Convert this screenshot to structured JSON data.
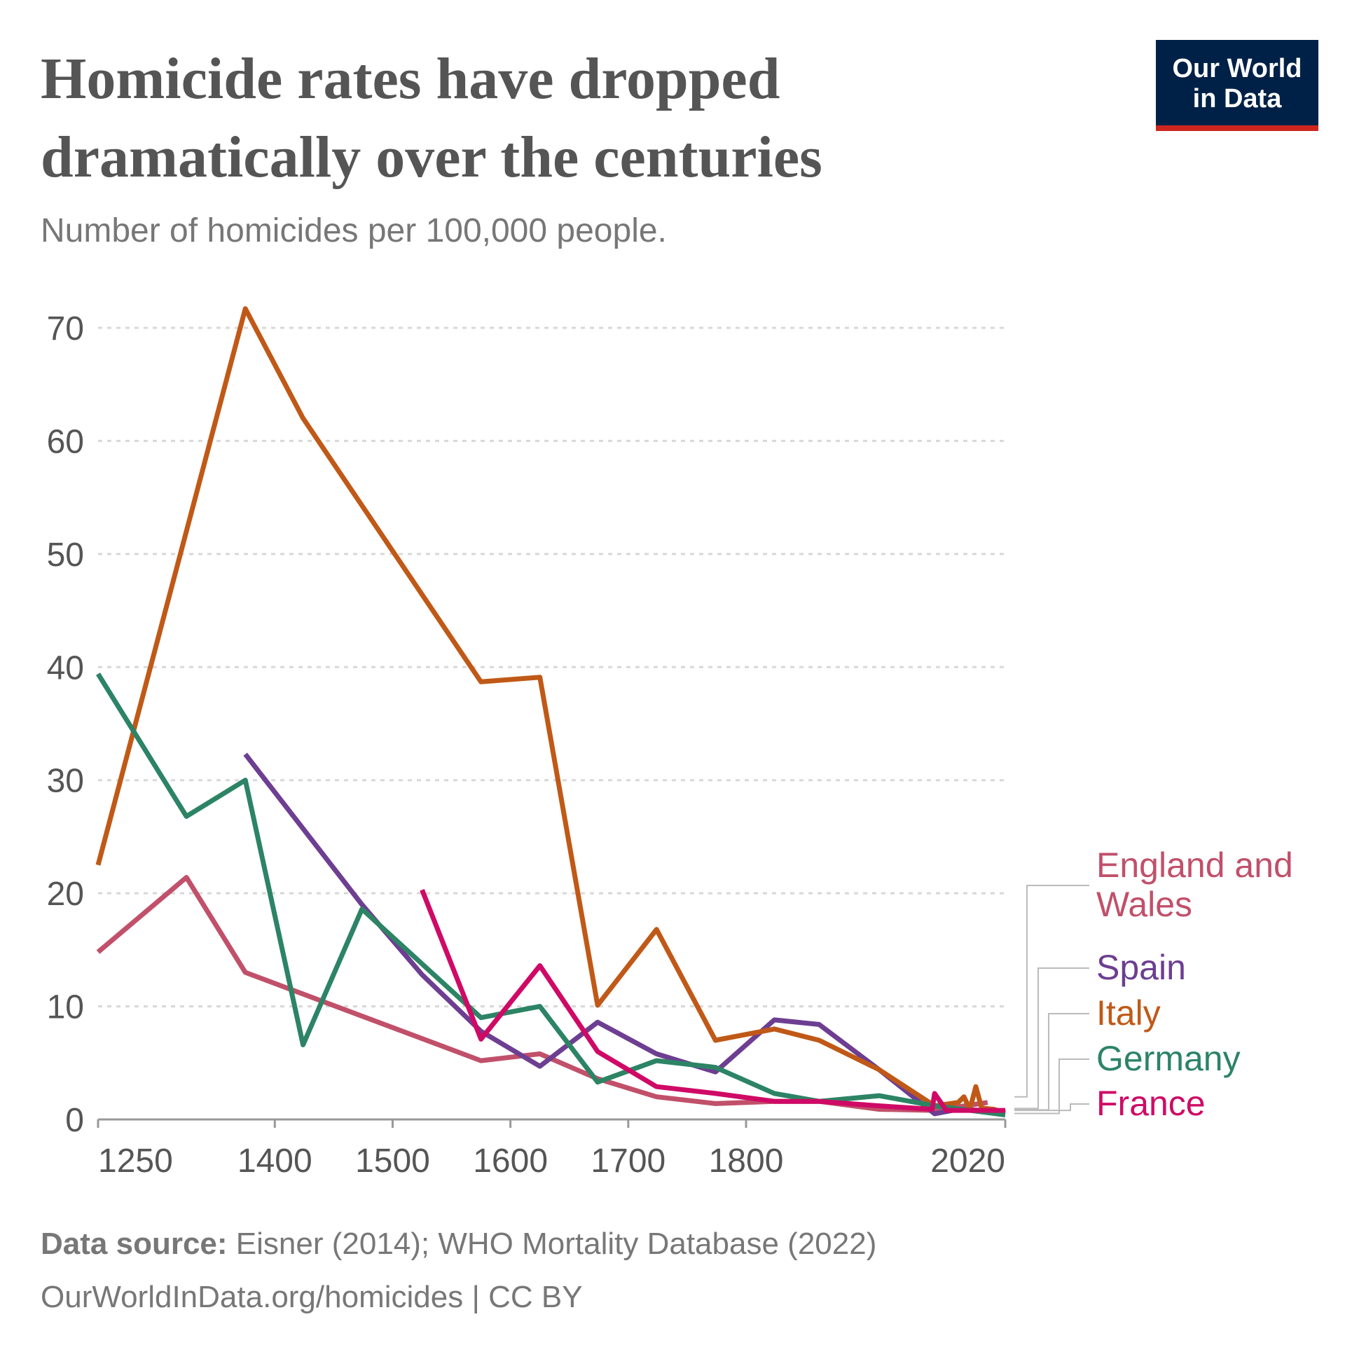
{
  "chart_data": {
    "type": "line",
    "title": "Homicide rates have dropped dramatically over the centuries",
    "subtitle": "Number of homicides per 100,000 people.",
    "source_label": "Data source:",
    "source": "Eisner (2014); WHO Mortality Database (2022)",
    "url": "OurWorldInData.org/homicides | CC BY",
    "logo": [
      "Our World",
      "in Data"
    ],
    "xlim": [
      1250,
      2020
    ],
    "xticks": [
      1250,
      1400,
      1500,
      1600,
      1700,
      1800,
      2020
    ],
    "ylim": [
      0,
      70
    ],
    "yticks": [
      0,
      10,
      20,
      30,
      40,
      50,
      60,
      70
    ],
    "grid": true,
    "series": [
      {
        "name": "England and Wales",
        "color": "#c1506a",
        "x": [
          1250,
          1325,
          1375,
          1575,
          1625,
          1674,
          1724,
          1774,
          1824,
          1862,
          1913,
          1960,
          2005
        ],
        "values": [
          14.8,
          21.4,
          13,
          5.2,
          5.8,
          3.6,
          2,
          1.4,
          1.6,
          1.6,
          0.9,
          0.8,
          1.5
        ]
      },
      {
        "name": "Spain",
        "color": "#6d3e91",
        "x": [
          1375,
          1474,
          1525,
          1575,
          1625,
          1674,
          1724,
          1774,
          1824,
          1862,
          1913,
          1960,
          1980,
          2000,
          2020
        ],
        "values": [
          32.3,
          19,
          12.8,
          7.8,
          4.7,
          8.6,
          5.8,
          4.2,
          8.8,
          8.4,
          4.4,
          0.5,
          0.9,
          0.8,
          0.6
        ]
      },
      {
        "name": "Italy",
        "color": "#c05917",
        "x": [
          1250,
          1375,
          1424,
          1575,
          1625,
          1674,
          1724,
          1774,
          1824,
          1862,
          1913,
          1960,
          1980,
          1985,
          1990,
          1995,
          2000,
          2010,
          2020
        ],
        "values": [
          22.5,
          71.7,
          62,
          38.7,
          39.1,
          10.1,
          16.8,
          7,
          8,
          7,
          4.4,
          1.2,
          1.5,
          2,
          0.9,
          2.9,
          1,
          0.9,
          0.6
        ]
      },
      {
        "name": "Germany",
        "color": "#2c8465",
        "x": [
          1250,
          1325,
          1375,
          1424,
          1474,
          1575,
          1625,
          1674,
          1724,
          1774,
          1824,
          1862,
          1913,
          1960,
          2020
        ],
        "values": [
          39.4,
          26.8,
          30,
          6.6,
          18.6,
          9,
          10,
          3.3,
          5.2,
          4.6,
          2.3,
          1.6,
          2.1,
          1.2,
          0.4
        ]
      },
      {
        "name": "France",
        "color": "#cf0a66",
        "x": [
          1525,
          1575,
          1625,
          1674,
          1724,
          1774,
          1824,
          1862,
          1913,
          1958,
          1960,
          1970,
          2020
        ],
        "values": [
          20.3,
          7.1,
          13.6,
          6,
          2.9,
          2.3,
          1.6,
          1.6,
          1.2,
          0.9,
          2.3,
          0.8,
          0.8
        ]
      }
    ]
  }
}
